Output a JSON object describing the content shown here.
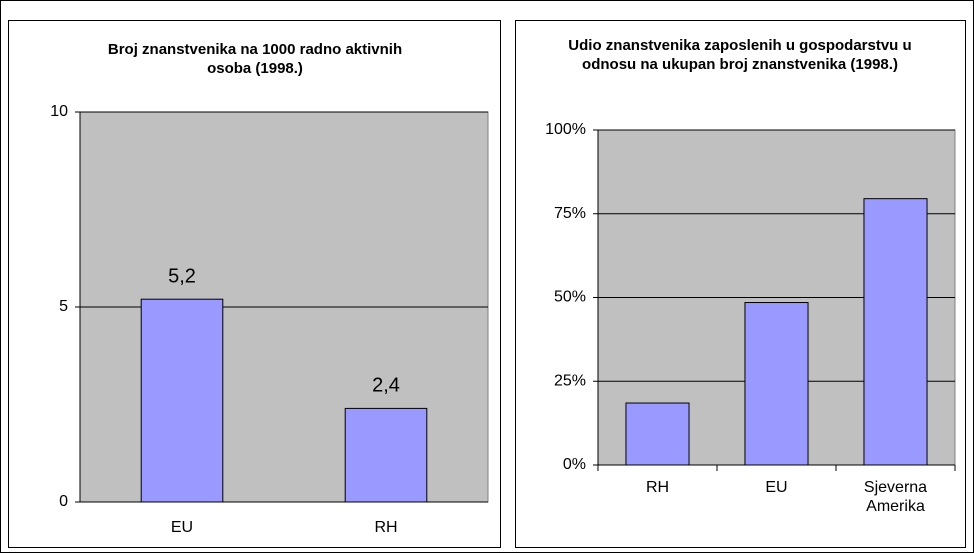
{
  "chart_data": [
    {
      "type": "bar",
      "title": "Broj znanstvenika na 1000 radno aktivnih osoba (1998.)",
      "categories": [
        "EU",
        "RH"
      ],
      "values": [
        5.2,
        2.4
      ],
      "value_labels": [
        "5,2",
        "2,4"
      ],
      "color": "#9999ff",
      "ylim": [
        0,
        10
      ],
      "yticks": [
        0,
        5,
        10
      ],
      "grid": true
    },
    {
      "type": "bar",
      "title": "Udio znanstvenika zaposlenih u gospodarstvu u odnosu na ukupan broj znanstvenika (1998.)",
      "categories": [
        "RH",
        "EU",
        "Sjeverna Amerika"
      ],
      "values": [
        18.5,
        48.5,
        79.5
      ],
      "color": "#9999ff",
      "ylim": [
        0,
        100
      ],
      "yticks": [
        {
          "value": 0,
          "label": "0%"
        },
        {
          "value": 25,
          "label": "25%"
        },
        {
          "value": 50,
          "label": "50%"
        },
        {
          "value": 75,
          "label": "75%"
        },
        {
          "value": 100,
          "label": "100%"
        }
      ],
      "grid": true
    }
  ]
}
